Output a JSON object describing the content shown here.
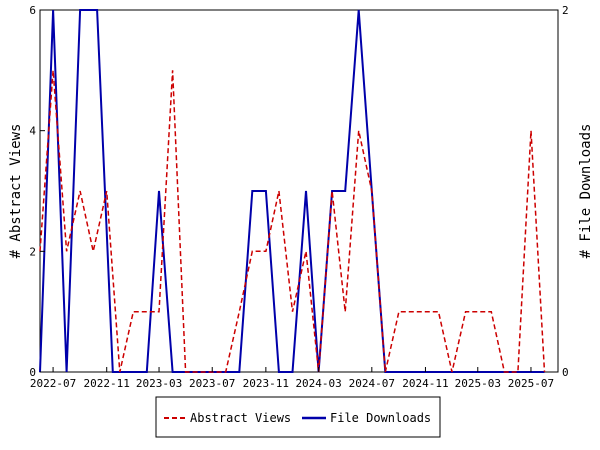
{
  "chart_data": {
    "type": "line",
    "x": [
      "2022-06",
      "2022-07",
      "2022-08",
      "2022-09",
      "2022-10",
      "2022-11",
      "2022-12",
      "2023-01",
      "2023-02",
      "2023-03",
      "2023-04",
      "2023-05",
      "2023-06",
      "2023-07",
      "2023-08",
      "2023-09",
      "2023-10",
      "2023-11",
      "2023-12",
      "2024-01",
      "2024-02",
      "2024-03",
      "2024-04",
      "2024-05",
      "2024-06",
      "2024-07",
      "2024-08",
      "2024-09",
      "2024-10",
      "2024-11",
      "2024-12",
      "2025-01",
      "2025-02",
      "2025-03",
      "2025-04",
      "2025-05",
      "2025-06",
      "2025-07",
      "2025-08",
      "2025-09"
    ],
    "x_ticks": [
      "2022-07",
      "2022-11",
      "2023-03",
      "2023-07",
      "2023-11",
      "2024-03",
      "2024-07",
      "2024-11",
      "2025-03",
      "2025-07"
    ],
    "ylabel": "# Abstract Views",
    "y2label": "# File Downloads",
    "ylim": [
      0,
      6
    ],
    "y2lim": [
      0,
      2
    ],
    "yticks": [
      0,
      2,
      4,
      6
    ],
    "y2ticks": [
      0,
      2
    ],
    "legend_position": "bottom",
    "series": [
      {
        "name": "Abstract Views",
        "axis": "left",
        "color": "#cc0000",
        "style": "dashed",
        "points": [
          [
            "2022-06-01",
            2
          ],
          [
            "2022-07-01",
            5
          ],
          [
            "2022-08-01",
            2
          ],
          [
            "2022-09-01",
            3
          ],
          [
            "2022-10-01",
            2
          ],
          [
            "2022-11-01",
            3
          ],
          [
            "2022-12-01",
            0
          ],
          [
            "2023-01-01",
            1
          ],
          [
            "2023-02-01",
            1
          ],
          [
            "2023-03-01",
            1
          ],
          [
            "2023-04-01",
            5
          ],
          [
            "2023-05-01",
            0
          ],
          [
            "2023-06-01",
            0
          ],
          [
            "2023-07-01",
            0
          ],
          [
            "2023-08-01",
            0
          ],
          [
            "2023-09-01",
            1
          ],
          [
            "2023-10-01",
            2
          ],
          [
            "2023-11-01",
            2
          ],
          [
            "2023-12-01",
            3
          ],
          [
            "2024-01-01",
            1
          ],
          [
            "2024-02-01",
            2
          ],
          [
            "2024-03-01",
            0
          ],
          [
            "2024-04-01",
            3
          ],
          [
            "2024-05-01",
            1
          ],
          [
            "2024-06-01",
            4
          ],
          [
            "2024-07-01",
            3
          ],
          [
            "2024-08-01",
            0
          ],
          [
            "2024-09-01",
            1
          ],
          [
            "2024-10-01",
            1
          ],
          [
            "2024-11-01",
            1
          ],
          [
            "2024-12-01",
            1
          ],
          [
            "2025-01-01",
            0
          ],
          [
            "2025-02-01",
            1
          ],
          [
            "2025-03-01",
            1
          ],
          [
            "2025-04-01",
            1
          ],
          [
            "2025-05-01",
            0
          ],
          [
            "2025-06-01",
            0
          ],
          [
            "2025-07-01",
            4
          ],
          [
            "2025-08-01",
            0
          ]
        ]
      },
      {
        "name": "File Downloads",
        "axis": "right",
        "color": "#0000aa",
        "style": "solid",
        "points": [
          [
            "2022-06-01",
            0
          ],
          [
            "2022-07-01",
            2
          ],
          [
            "2022-08-01",
            0
          ],
          [
            "2022-09-01",
            2
          ],
          [
            "2022-09-20",
            2
          ],
          [
            "2022-10-10",
            2
          ],
          [
            "2022-11-15",
            0
          ],
          [
            "2023-01-01",
            0
          ],
          [
            "2023-02-01",
            0
          ],
          [
            "2023-03-01",
            1
          ],
          [
            "2023-04-01",
            0
          ],
          [
            "2023-05-01",
            0
          ],
          [
            "2023-06-01",
            0
          ],
          [
            "2023-07-01",
            0
          ],
          [
            "2023-08-01",
            0
          ],
          [
            "2023-09-01",
            0
          ],
          [
            "2023-10-01",
            1
          ],
          [
            "2023-11-01",
            1
          ],
          [
            "2023-12-01",
            0
          ],
          [
            "2024-01-01",
            0
          ],
          [
            "2024-02-01",
            1
          ],
          [
            "2024-03-01",
            0
          ],
          [
            "2024-04-01",
            1
          ],
          [
            "2024-05-01",
            1
          ],
          [
            "2024-06-01",
            2
          ],
          [
            "2024-07-01",
            1
          ],
          [
            "2024-08-01",
            0
          ],
          [
            "2024-09-01",
            0
          ],
          [
            "2024-10-01",
            0
          ],
          [
            "2024-11-01",
            0
          ],
          [
            "2024-12-01",
            0
          ],
          [
            "2025-01-01",
            0
          ],
          [
            "2025-02-01",
            0
          ],
          [
            "2025-03-01",
            0
          ],
          [
            "2025-04-01",
            0
          ],
          [
            "2025-05-01",
            0
          ],
          [
            "2025-06-01",
            0
          ],
          [
            "2025-07-01",
            0
          ],
          [
            "2025-08-01",
            0
          ]
        ]
      }
    ]
  }
}
